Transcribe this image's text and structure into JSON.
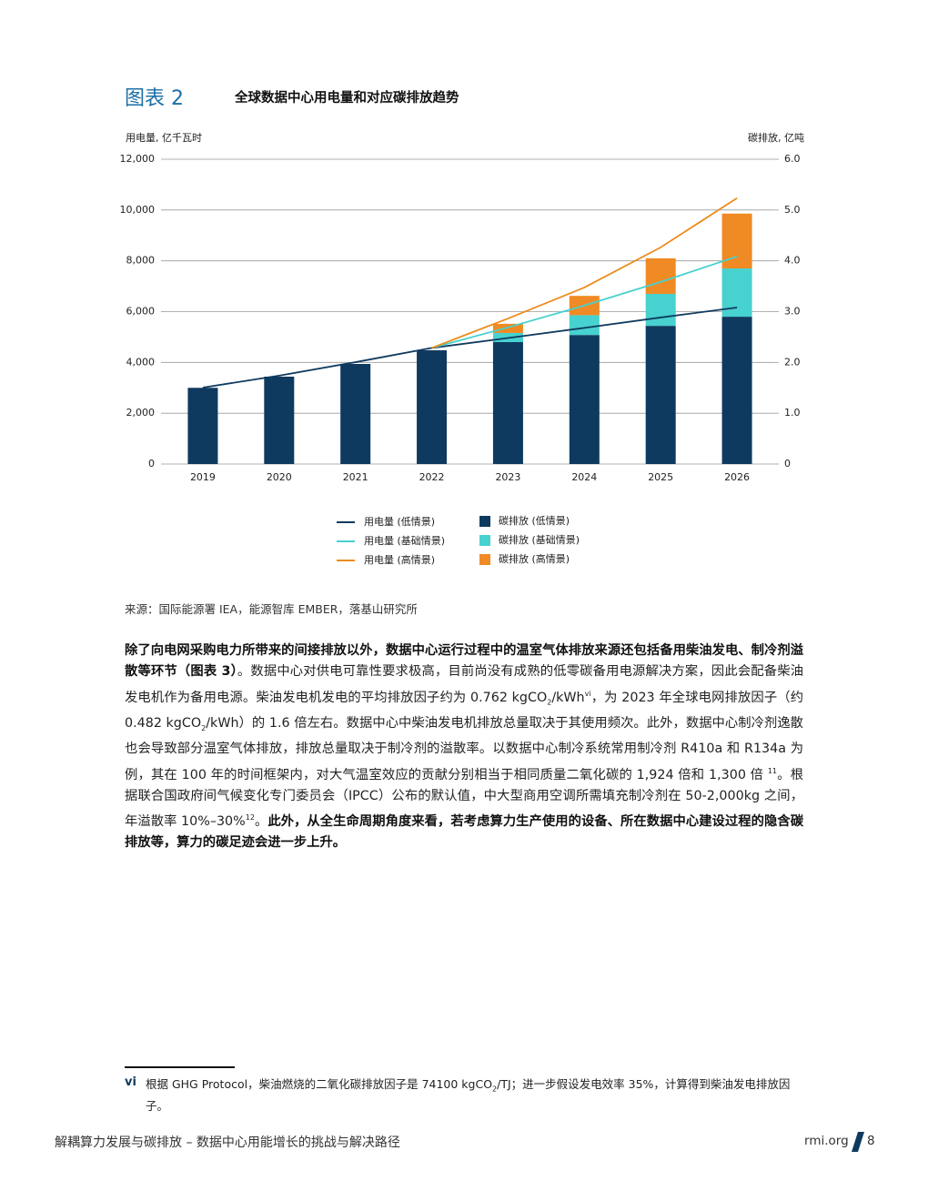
{
  "figure_label": "图表 2",
  "figure_title": "全球数据中心用电量和对应碳排放趋势",
  "chart_data": {
    "type": "combo",
    "y_label": "用电量, 亿千瓦时",
    "y2_label": "碳排放, 亿吨",
    "categories": [
      "2019",
      "2020",
      "2021",
      "2022",
      "2023",
      "2024",
      "2025",
      "2026"
    ],
    "ylim": [
      0,
      12000
    ],
    "yticks": [
      0,
      {
        "value": 2000,
        "label": "2,000"
      },
      {
        "value": 4000,
        "label": "4,000"
      },
      {
        "value": 6000,
        "label": "6,000"
      },
      {
        "value": 8000,
        "label": "8,000"
      },
      {
        "value": 10000,
        "label": "10,000"
      },
      {
        "value": 12000,
        "label": "12,000"
      }
    ],
    "y2lim": [
      0,
      6
    ],
    "y2ticks": [
      0,
      {
        "value": 1,
        "label": "1.0"
      },
      {
        "value": 2,
        "label": "2.0"
      },
      {
        "value": 3,
        "label": "3.0"
      },
      {
        "value": 4,
        "label": "4.0"
      },
      {
        "value": 5,
        "label": "5.0"
      },
      {
        "value": 6,
        "label": "6.0"
      }
    ],
    "grid": true,
    "series": [
      {
        "name": "用电量 (低情景)",
        "type": "line",
        "color": "#0f3a5f",
        "values": [
          3010,
          3480,
          4010,
          4570,
          4960,
          5360,
          5770,
          6160
        ]
      },
      {
        "name": "用电量 (基础情景)",
        "type": "line",
        "color": "#47d1cf",
        "values": [
          null,
          null,
          null,
          4570,
          5380,
          6240,
          7170,
          8170
        ]
      },
      {
        "name": "用电量 (高情景)",
        "type": "line",
        "color": "#ec8c1c",
        "values": [
          null,
          null,
          null,
          4570,
          5730,
          6950,
          8530,
          10470
        ]
      },
      {
        "name": "碳排放 (低情景)",
        "type": "bar",
        "axis": "y2",
        "color": "#0f3a5f",
        "values": [
          1.5,
          1.72,
          1.97,
          2.24,
          2.4,
          2.54,
          2.72,
          2.9
        ]
      },
      {
        "name": "碳排放 (基础情景)",
        "type": "bar",
        "axis": "y2",
        "color": "#47d1cf",
        "values": [
          0,
          0,
          0,
          0,
          0.18,
          0.39,
          0.63,
          0.95
        ]
      },
      {
        "name": "碳排放 (高情景)",
        "type": "bar",
        "axis": "y2",
        "color": "#f08a24",
        "values": [
          0,
          0,
          0,
          0,
          0.18,
          0.38,
          0.7,
          1.08
        ]
      }
    ]
  },
  "source": "来源：国际能源署 IEA，能源智库 EMBER，落基山研究所",
  "paragraph": {
    "runs": [
      {
        "text": "除了向电网采购电力所带来的间接排放以外，数据中心运行过程中的温室气体排放来源还包括备用柴油发电、制冷剂溢散等环节（图表 3）",
        "style": "bold"
      },
      {
        "text": "。数据中心对供电可靠性要求极高，目前尚没有成熟的低零碳备用电源解决方案，因此会配备柴油发电机作为备用电源。柴油发电机发电的平均排放因子约为 0.762 kgCO",
        "style": "normal"
      },
      {
        "text": "2",
        "style": "sub"
      },
      {
        "text": "/kWh",
        "style": "normal"
      },
      {
        "text": "vi",
        "style": "sup"
      },
      {
        "text": "，为 2023 年全球电网排放因子（约 0.482 kgCO",
        "style": "normal"
      },
      {
        "text": "2",
        "style": "sub"
      },
      {
        "text": "/kWh）的 1.6 倍左右。数据中心中柴油发电机排放总量取决于其使用频次。此外，数据中心制冷剂逸散也会导致部分温室气体排放，排放总量取决于制冷剂的溢散率。以数据中心制冷系统常用制冷剂 R410a 和 R134a 为例，其在 100 年的时间框架内，对大气温室效应的贡献分别相当于相同质量二氧化碳的 1,924 倍和 1,300 倍 ",
        "style": "normal"
      },
      {
        "text": "11",
        "style": "sup"
      },
      {
        "text": "。根据联合国政府间气候变化专门委员会（IPCC）公布的默认值，中大型商用空调所需填充制冷剂在 50-2,000kg 之间，年溢散率 10%–30%",
        "style": "normal"
      },
      {
        "text": "12",
        "style": "sup"
      },
      {
        "text": "。",
        "style": "normal"
      },
      {
        "text": "此外，从全生命周期角度来看，若考虑算力生产使用的设备、所在数据中心建设过程的隐含碳排放等，算力的碳足迹会进一步上升。",
        "style": "bold"
      }
    ]
  },
  "footnote": {
    "marker": "vi",
    "runs": [
      {
        "text": "根据 GHG Protocol，柴油燃烧的二氧化碳排放因子是 74100 kgCO",
        "style": "normal"
      },
      {
        "text": "2",
        "style": "sub"
      },
      {
        "text": "/TJ；进一步假设发电效率 35%，计算得到柴油发电排放因子。",
        "style": "normal"
      }
    ]
  },
  "footer": {
    "title": "解耦算力发展与碳排放 – 数据中心用能增长的挑战与解决路径",
    "site": "rmi.org",
    "page": "8"
  }
}
